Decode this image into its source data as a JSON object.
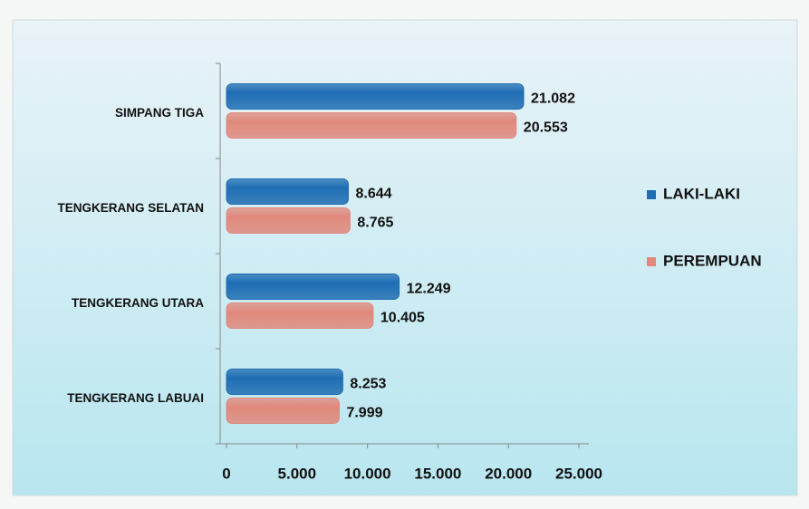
{
  "chart_data": {
    "type": "hbar",
    "categories": [
      "SIMPANG TIGA",
      "TENGKERANG SELATAN",
      "TENGKERANG UTARA",
      "TENGKERANG LABUAI"
    ],
    "series": [
      {
        "name": "LAKI-LAKI",
        "color": "#1f6db3",
        "values": [
          21082,
          8644,
          12249,
          8253
        ],
        "value_labels": [
          "21.082",
          "8.644",
          "12.249",
          "8.253"
        ]
      },
      {
        "name": "PEREMPUAN",
        "color": "#e0897c",
        "values": [
          20553,
          8765,
          10405,
          7999
        ],
        "value_labels": [
          "20.553",
          "8.765",
          "10.405",
          "7.999"
        ]
      }
    ],
    "xlim": [
      0,
      25000
    ],
    "xticks": [
      0,
      {
        "value": 5000,
        "label": "5.000"
      },
      {
        "value": 10000,
        "label": "10.000"
      },
      {
        "value": 15000,
        "label": "15.000"
      },
      {
        "value": 20000,
        "label": "20.000"
      },
      {
        "value": 25000,
        "label": "25.000"
      }
    ],
    "legend": "right"
  }
}
